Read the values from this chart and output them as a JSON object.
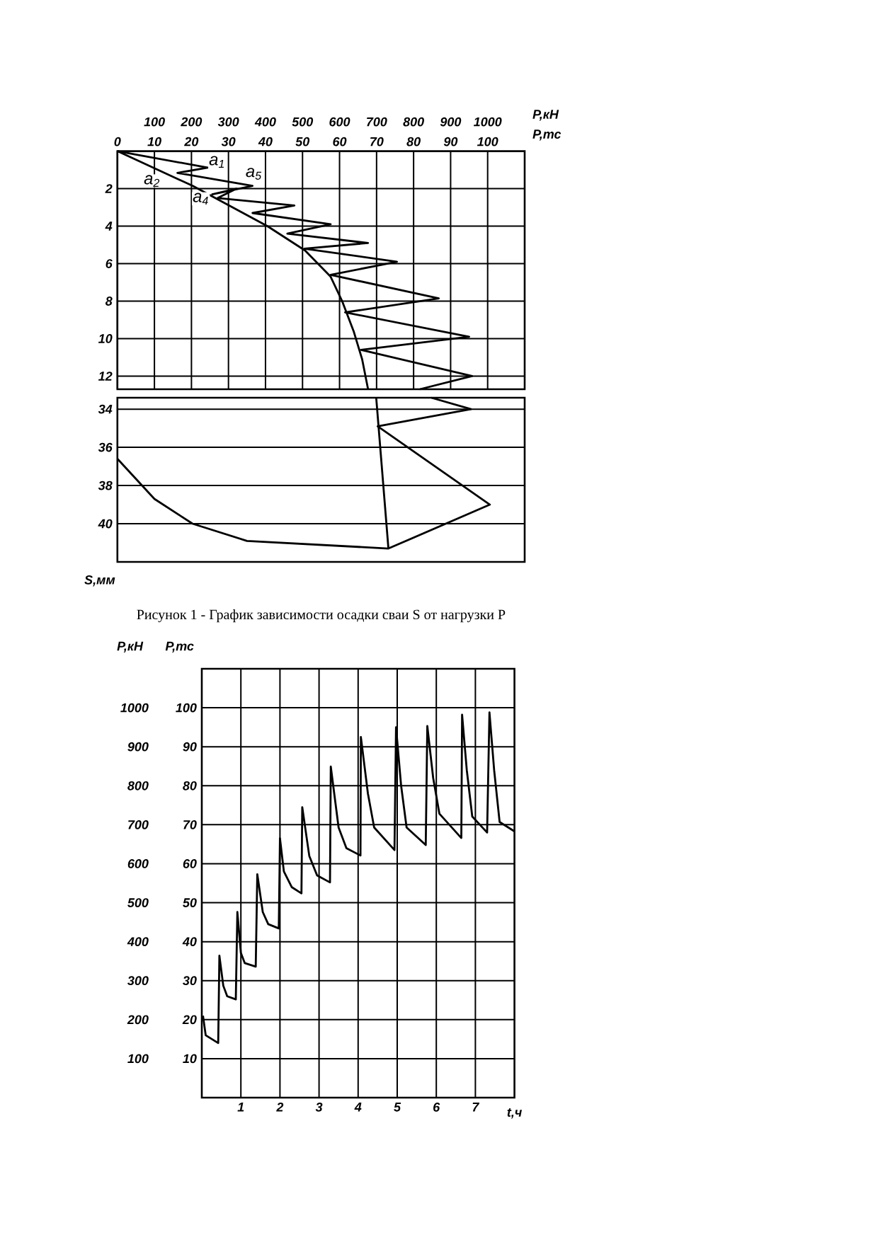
{
  "chart_data": [
    {
      "type": "line",
      "xlabel": "P,тс",
      "x2label": "P,кН",
      "xlim": [
        0,
        110
      ],
      "xticks": [
        0,
        10,
        20,
        30,
        40,
        50,
        60,
        70,
        80,
        90,
        100
      ],
      "x2lim": [
        0,
        1100
      ],
      "x2ticks": [
        100,
        200,
        300,
        400,
        500,
        600,
        700,
        800,
        900,
        1000
      ],
      "ylim": [
        12.7,
        0
      ],
      "yticks": [
        2,
        4,
        6,
        8,
        10,
        12
      ],
      "grid": true,
      "series": [
        {
          "color": "#000000",
          "x": [
            0,
            20.3,
            40.5,
            50.7,
            57.6,
            60.7,
            63.8,
            66.1,
            67.7
          ],
          "values": [
            0,
            1.85,
            4.0,
            5.3,
            6.7,
            8.0,
            9.6,
            11.1,
            12.7
          ]
        },
        {
          "color": "#000000",
          "x": [
            0,
            24.4,
            16.2,
            36.5,
            25.6,
            32.2,
            27.1,
            47.8,
            36.5,
            57.6,
            45.9,
            67.7,
            50.5,
            75.5,
            57.6,
            86.8,
            61.5,
            95,
            65.8,
            95.8,
            81.7
          ],
          "values": [
            0,
            0.88,
            1.16,
            1.85,
            2.3,
            2.0,
            2.5,
            2.9,
            3.3,
            3.9,
            4.4,
            4.9,
            5.2,
            5.9,
            6.6,
            7.85,
            8.6,
            9.9,
            10.6,
            12.0,
            12.7
          ]
        }
      ],
      "annotations": [
        "a$_{1}$",
        "a$_{2}$",
        "a$_{4}$",
        "a$_{5}$"
      ]
    },
    {
      "type": "line",
      "ylabel": "S,мм",
      "xlim": [
        0,
        110
      ],
      "ylim": [
        42,
        33.4
      ],
      "yticks": [
        34,
        36,
        38,
        40
      ],
      "grid": true,
      "tick_labels": "y",
      "series": [
        {
          "color": "#000000",
          "x": [
            69.9,
            73.2
          ],
          "values": [
            33.4,
            41.3
          ]
        },
        {
          "color": "#000000",
          "x": [
            84.8,
            95.5,
            70.3,
            100.6,
            73.2,
            35,
            20.3,
            10,
            0
          ],
          "values": [
            33.4,
            34.0,
            34.9,
            39.0,
            41.3,
            40.9,
            40.0,
            38.7,
            36.6
          ]
        }
      ],
      "annotations": [
        "Рисунок 1 - График зависимости осадки сваи S от нагрузки P"
      ]
    },
    {
      "type": "line",
      "xlabel": "t,ч",
      "ylabel": "P,тс",
      "y2label": "P,кН",
      "xlim": [
        0,
        8
      ],
      "xticks": [
        1,
        2,
        3,
        4,
        5,
        6,
        7
      ],
      "ylim": [
        0,
        110
      ],
      "yticks": [
        10,
        20,
        30,
        40,
        50,
        60,
        70,
        80,
        90,
        100
      ],
      "y2lim": [
        0,
        1100
      ],
      "y2ticks": [
        100,
        200,
        300,
        400,
        500,
        600,
        700,
        800,
        900,
        1000
      ],
      "grid": true,
      "series": [
        {
          "color": "#000000",
          "x": [
            0.03,
            0.1,
            0.42,
            0.45,
            0.55,
            0.65,
            0.87,
            0.91,
            1.0,
            1.1,
            1.38,
            1.42,
            1.56,
            1.7,
            1.97,
            2.0,
            2.1,
            2.3,
            2.55,
            2.57,
            2.75,
            2.95,
            3.28,
            3.3,
            3.5,
            3.7,
            4.06,
            4.07,
            4.25,
            4.41,
            4.93,
            4.97,
            5.1,
            5.24,
            5.73,
            5.77,
            5.92,
            6.08,
            6.64,
            6.66,
            6.78,
            6.92,
            7.3,
            7.36,
            7.48,
            7.62,
            8.0
          ],
          "values": [
            21,
            16,
            14,
            36.4,
            28.7,
            26,
            25.2,
            47.6,
            37.1,
            34.5,
            33.6,
            57.3,
            47.6,
            44.5,
            43.4,
            66.5,
            58,
            54,
            52.4,
            74.5,
            62,
            57,
            55.2,
            84.9,
            69.3,
            64,
            62.1,
            92.5,
            78,
            69.3,
            63.5,
            95,
            80,
            69.3,
            64.8,
            95.3,
            82,
            72.8,
            66.6,
            98.2,
            84,
            72.1,
            68,
            98.8,
            84,
            70.7,
            68.3
          ]
        }
      ]
    }
  ]
}
